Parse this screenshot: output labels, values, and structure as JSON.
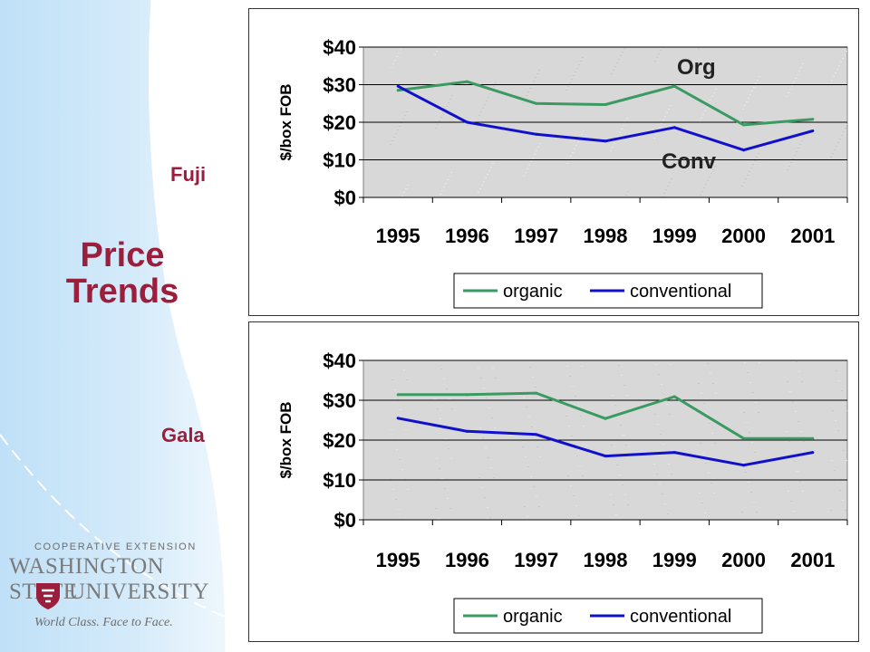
{
  "slide": {
    "title": "Price Trends",
    "fuji_label": "Fuji",
    "gala_label": "Gala"
  },
  "logo": {
    "line1": "COOPERATIVE EXTENSION",
    "line2": "WASHINGTON STATE",
    "line3": "UNIVERSITY",
    "tagline": "World Class. Face to Face."
  },
  "colors": {
    "accent": "#9b1f3c",
    "organic": "#3a9a62",
    "conventional": "#1010cc",
    "plot_bg": "#d8d8d8"
  },
  "chart_data": [
    {
      "type": "line",
      "categories": [
        "1995",
        "1996",
        "1997",
        "1998",
        "1999",
        "2000",
        "2001"
      ],
      "ylabel": "$/box FOB",
      "ylim": [
        0,
        40
      ],
      "yticks": [
        "$0",
        "$10",
        "$20",
        "$30",
        "$40"
      ],
      "grid": true,
      "legend": "bottom",
      "annotations": [
        "Org",
        "Conv"
      ],
      "series": [
        {
          "name": "organic",
          "values": [
            28.5,
            30.8,
            25,
            24.7,
            29.6,
            19.3,
            20.8
          ]
        },
        {
          "name": "conventional",
          "values": [
            29.6,
            20,
            16.8,
            15,
            18.6,
            12.6,
            17.7
          ]
        }
      ]
    },
    {
      "type": "line",
      "categories": [
        "1995",
        "1996",
        "1997",
        "1998",
        "1999",
        "2000",
        "2001"
      ],
      "ylabel": "$/box FOB",
      "ylim": [
        0,
        40
      ],
      "yticks": [
        "$0",
        "$10",
        "$20",
        "$30",
        "$40"
      ],
      "grid": true,
      "legend": "bottom",
      "series": [
        {
          "name": "organic",
          "values": [
            31.4,
            31.4,
            31.8,
            25.4,
            30.9,
            20.4,
            20.4
          ]
        },
        {
          "name": "conventional",
          "values": [
            25.5,
            22.2,
            21.4,
            16,
            16.9,
            13.7,
            16.9
          ]
        }
      ]
    }
  ]
}
